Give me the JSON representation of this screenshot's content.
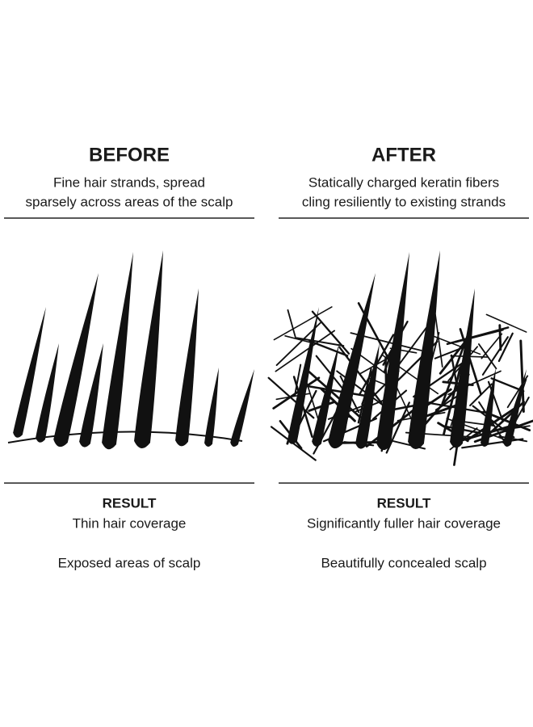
{
  "panels": [
    {
      "title": "BEFORE",
      "description": [
        "Fine hair strands, spread",
        "sparsely across areas of the scalp"
      ],
      "result_label": "RESULT",
      "results": [
        "Thin hair coverage",
        "Exposed areas of scalp"
      ]
    },
    {
      "title": "AFTER",
      "description": [
        "Statically charged keratin fibers",
        "cling resiliently to existing strands"
      ],
      "result_label": "RESULT",
      "results": [
        "Significantly fuller hair coverage",
        "Beautifully concealed scalp"
      ]
    }
  ]
}
